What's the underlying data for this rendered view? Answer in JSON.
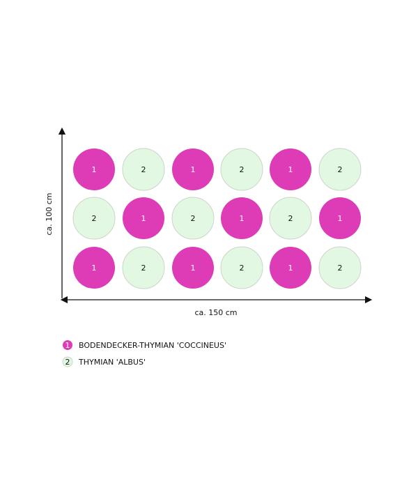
{
  "colors": {
    "plant_1": "#dd3cb6",
    "plant_2": "#e3f8e3",
    "plant_2_edge": "#c9d6c9",
    "axis": "#111111"
  },
  "axes": {
    "vertical_label": "ca. 100 cm",
    "horizontal_label": "ca. 150 cm"
  },
  "grid": [
    [
      "1",
      "2",
      "1",
      "2",
      "1",
      "2"
    ],
    [
      "2",
      "1",
      "2",
      "1",
      "2",
      "1"
    ],
    [
      "1",
      "2",
      "1",
      "2",
      "1",
      "2"
    ]
  ],
  "legend": [
    {
      "number": "1",
      "label": "BODENDECKER-THYMIAN 'COCCINEUS'"
    },
    {
      "number": "2",
      "label": "THYMIAN 'ALBUS'"
    }
  ]
}
